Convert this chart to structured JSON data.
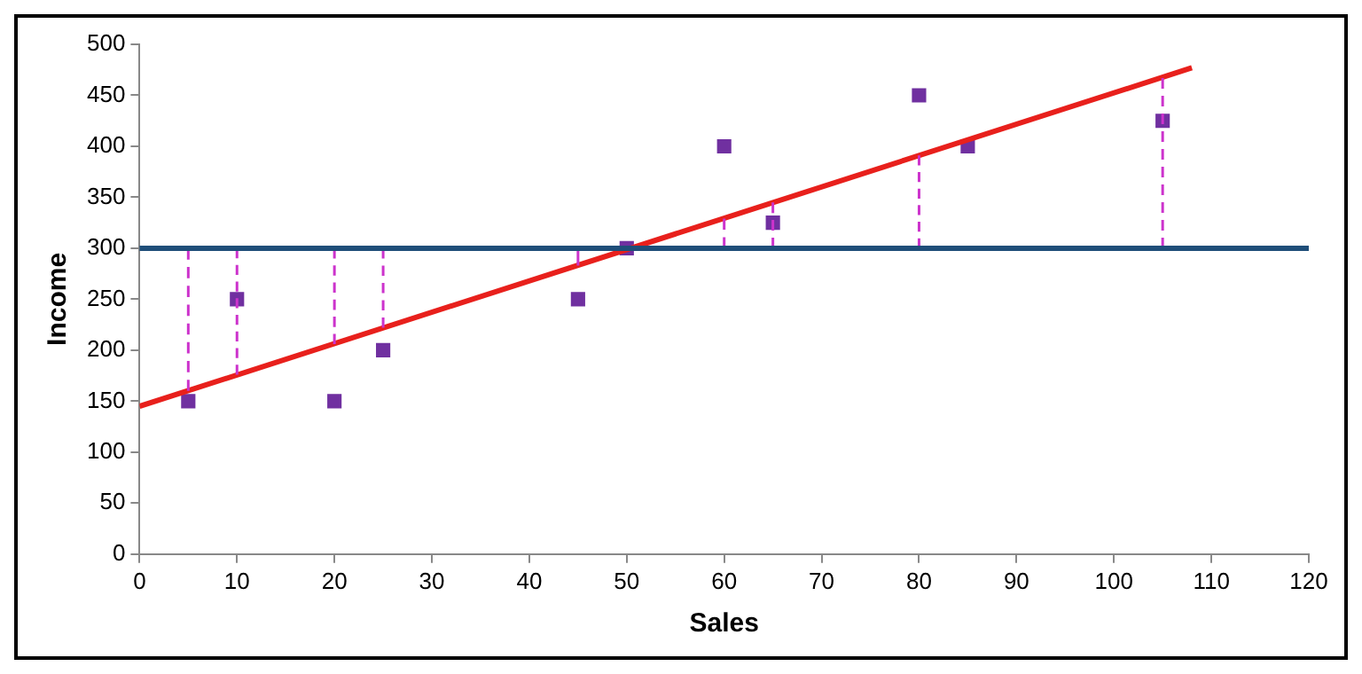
{
  "chart_data": {
    "type": "scatter",
    "xlabel": "Sales",
    "ylabel": "Income",
    "xlim": [
      0,
      120
    ],
    "xticks": [
      0,
      10,
      20,
      30,
      40,
      50,
      60,
      70,
      80,
      90,
      100,
      110,
      120
    ],
    "ylim": [
      0,
      500
    ],
    "yticks": [
      0,
      50,
      100,
      150,
      200,
      250,
      300,
      350,
      400,
      450,
      500
    ],
    "grid": false,
    "legend": false,
    "series": [
      {
        "type": "line",
        "line_style": "dashed",
        "marker": "none",
        "color": "#cc33cc",
        "x": [
          5,
          5
        ],
        "values": [
          160,
          300
        ]
      },
      {
        "type": "line",
        "line_style": "dashed",
        "marker": "none",
        "color": "#cc33cc",
        "x": [
          10,
          10
        ],
        "values": [
          176,
          300
        ]
      },
      {
        "type": "line",
        "line_style": "dashed",
        "marker": "none",
        "color": "#cc33cc",
        "x": [
          20,
          20
        ],
        "values": [
          206,
          300
        ]
      },
      {
        "type": "line",
        "line_style": "dashed",
        "marker": "none",
        "color": "#cc33cc",
        "x": [
          25,
          25
        ],
        "values": [
          222,
          300
        ]
      },
      {
        "type": "line",
        "line_style": "dashed",
        "marker": "none",
        "color": "#cc33cc",
        "x": [
          45,
          45
        ],
        "values": [
          283,
          300
        ]
      },
      {
        "type": "line",
        "line_style": "dashed",
        "marker": "none",
        "color": "#cc33cc",
        "x": [
          60,
          60
        ],
        "values": [
          329,
          300
        ]
      },
      {
        "type": "line",
        "line_style": "dashed",
        "marker": "none",
        "color": "#cc33cc",
        "x": [
          65,
          65
        ],
        "values": [
          345,
          300
        ]
      },
      {
        "type": "line",
        "line_style": "dashed",
        "marker": "none",
        "color": "#cc33cc",
        "x": [
          80,
          80
        ],
        "values": [
          391,
          300
        ]
      },
      {
        "type": "line",
        "line_style": "dashed",
        "marker": "none",
        "color": "#cc33cc",
        "x": [
          105,
          105
        ],
        "values": [
          467,
          300
        ]
      },
      {
        "type": "line",
        "line_style": "solid",
        "marker": "none",
        "color": "#e8201c",
        "x": [
          0,
          108
        ],
        "values": [
          145,
          477
        ]
      },
      {
        "type": "scatter",
        "marker": "square",
        "color": "#7030a0",
        "x": [
          5,
          10,
          20,
          25,
          45,
          50,
          60,
          65,
          80,
          85,
          105
        ],
        "values": [
          150,
          250,
          150,
          200,
          250,
          300,
          400,
          325,
          450,
          400,
          425
        ]
      }
    ],
    "ref_lines": [
      {
        "axis": "y",
        "value": 300,
        "color": "#1f4e79",
        "line_style": "solid"
      }
    ]
  }
}
